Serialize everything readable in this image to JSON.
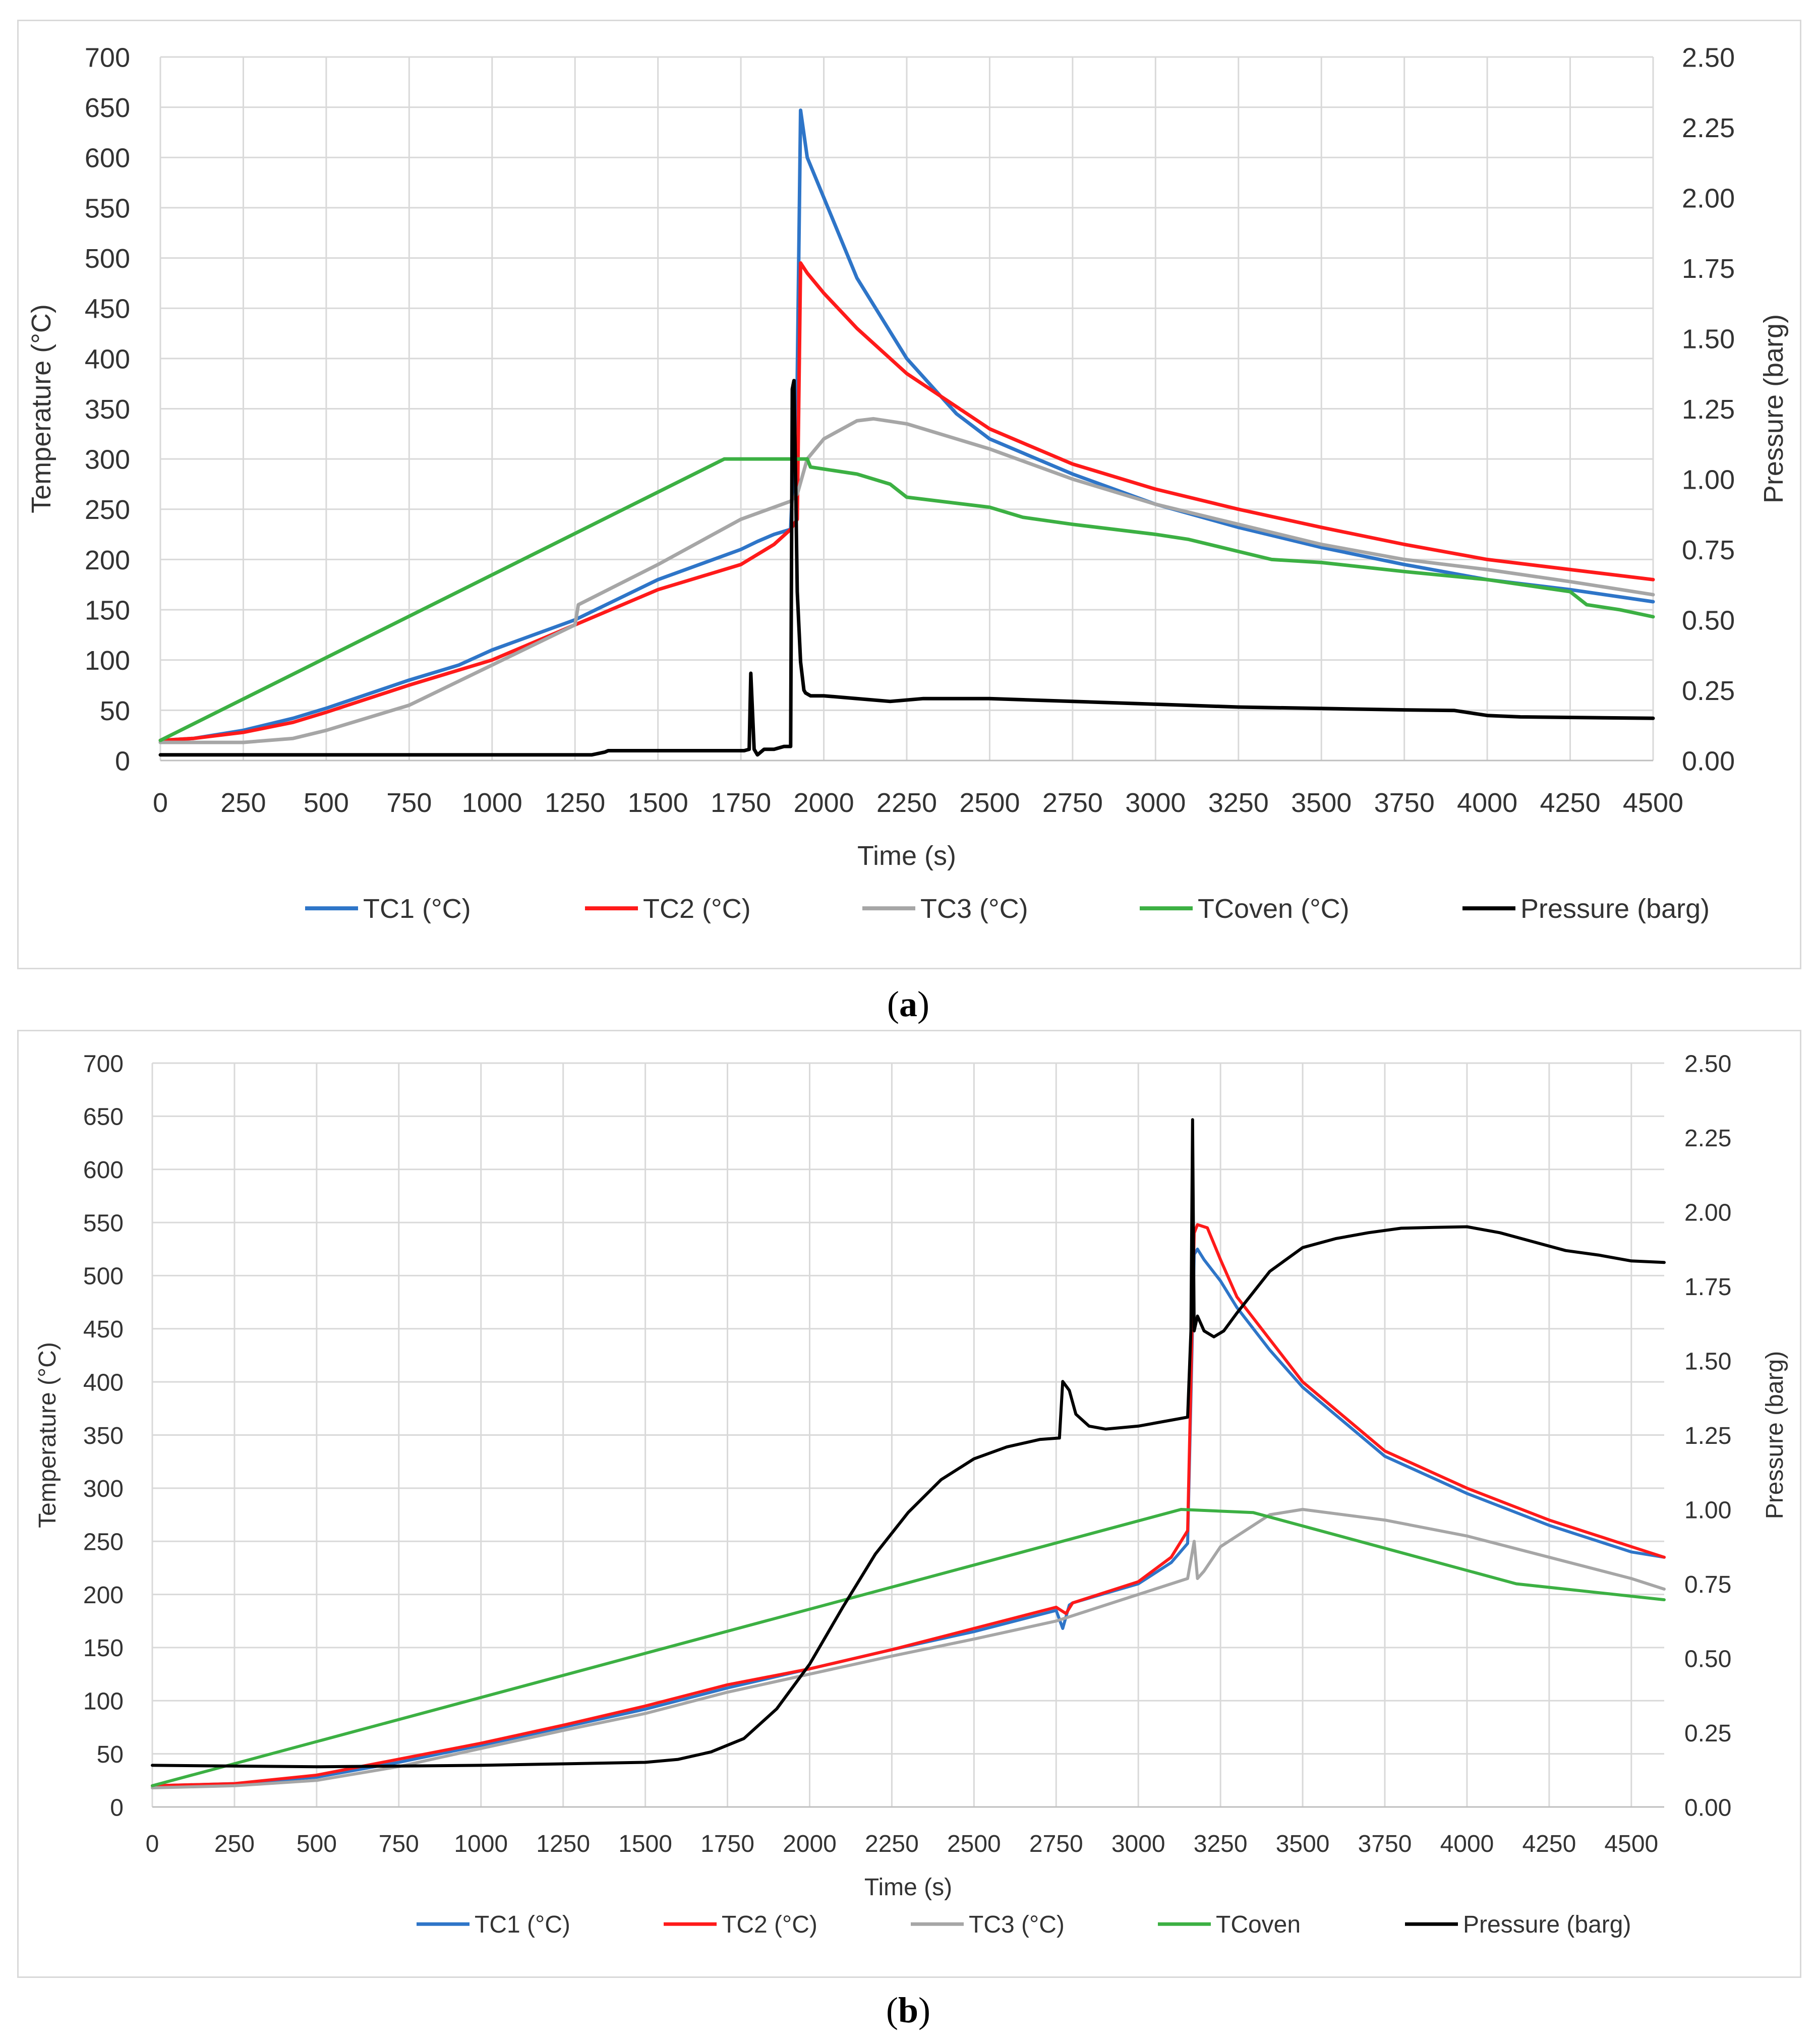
{
  "figure": {
    "captions": [
      "(a)",
      "(b)"
    ],
    "caption_letters": [
      "a",
      "b"
    ]
  },
  "colors": {
    "TC1": "#2e75c8",
    "TC2": "#ff1a1a",
    "TC3": "#a6a6a6",
    "TCoven": "#3cb043",
    "Pressure": "#000000",
    "grid": "#d9d9d9"
  },
  "chart_data": [
    {
      "id": "a",
      "type": "line",
      "title": "",
      "xlabel": "Time (s)",
      "ylabel": "Temperature (°C)",
      "y2label": "Pressure (barg)",
      "xlim": [
        0,
        4500
      ],
      "ylim": [
        0,
        700
      ],
      "y2lim": [
        0,
        2.5
      ],
      "x_ticks": [
        0,
        250,
        500,
        750,
        1000,
        1250,
        1500,
        1750,
        2000,
        2250,
        2500,
        2750,
        3000,
        3250,
        3500,
        3750,
        4000,
        4250,
        4500
      ],
      "y_ticks": [
        0,
        50,
        100,
        150,
        200,
        250,
        300,
        350,
        400,
        450,
        500,
        550,
        600,
        650,
        700
      ],
      "y2_ticks": [
        "0.00",
        "0.25",
        "0.50",
        "0.75",
        "1.00",
        "1.25",
        "1.50",
        "1.75",
        "2.00",
        "2.25",
        "2.50"
      ],
      "grid": true,
      "legend": "bottom",
      "series": [
        {
          "name": "TC1 (°C)",
          "key": "TC1",
          "axis": "y",
          "x": [
            0,
            100,
            250,
            400,
            500,
            750,
            900,
            1000,
            1250,
            1500,
            1750,
            1800,
            1850,
            1900,
            1920,
            1930,
            1950,
            2000,
            2100,
            2250,
            2400,
            2500,
            2750,
            3000,
            3250,
            3500,
            3750,
            4000,
            4250,
            4500
          ],
          "y": [
            20,
            22,
            30,
            42,
            52,
            80,
            95,
            110,
            140,
            180,
            210,
            218,
            225,
            230,
            380,
            647,
            600,
            560,
            480,
            400,
            345,
            320,
            285,
            255,
            232,
            212,
            195,
            180,
            170,
            158
          ]
        },
        {
          "name": "TC2 (°C)",
          "key": "TC2",
          "axis": "y",
          "x": [
            0,
            100,
            250,
            400,
            500,
            750,
            1000,
            1250,
            1500,
            1750,
            1850,
            1900,
            1920,
            1930,
            1950,
            2000,
            2100,
            2250,
            2500,
            2750,
            3000,
            3250,
            3500,
            3750,
            4000,
            4250,
            4500
          ],
          "y": [
            20,
            22,
            28,
            38,
            48,
            75,
            100,
            135,
            170,
            195,
            215,
            230,
            240,
            495,
            485,
            465,
            430,
            385,
            330,
            295,
            270,
            250,
            232,
            215,
            200,
            190,
            180
          ]
        },
        {
          "name": "TC3 (°C)",
          "key": "TC3",
          "axis": "y",
          "x": [
            0,
            250,
            400,
            500,
            750,
            1000,
            1250,
            1260,
            1500,
            1750,
            1900,
            1920,
            1950,
            2000,
            2100,
            2150,
            2250,
            2500,
            2750,
            3000,
            3250,
            3500,
            3750,
            4000,
            4250,
            4500
          ],
          "y": [
            18,
            18,
            22,
            30,
            55,
            95,
            135,
            155,
            195,
            240,
            258,
            265,
            300,
            320,
            338,
            340,
            335,
            310,
            280,
            255,
            235,
            215,
            200,
            190,
            178,
            165
          ]
        },
        {
          "name": "TCoven (°C)",
          "key": "TCoven",
          "axis": "y",
          "x": [
            0,
            1700,
            1950,
            1960,
            2000,
            2100,
            2200,
            2250,
            2500,
            2600,
            2750,
            3000,
            3100,
            3250,
            3350,
            3500,
            3750,
            4000,
            4250,
            4300,
            4400,
            4500
          ],
          "y": [
            20,
            300,
            300,
            292,
            290,
            285,
            275,
            262,
            252,
            242,
            235,
            225,
            220,
            208,
            200,
            197,
            188,
            180,
            168,
            155,
            150,
            143
          ]
        },
        {
          "name": "Pressure (barg)",
          "key": "Pressure",
          "axis": "y2",
          "x": [
            0,
            200,
            1250,
            1300,
            1340,
            1350,
            1760,
            1775,
            1780,
            1790,
            1800,
            1820,
            1850,
            1880,
            1900,
            1905,
            1910,
            1915,
            1920,
            1930,
            1940,
            1945,
            1960,
            2000,
            2100,
            2200,
            2300,
            2500,
            2750,
            3000,
            3250,
            3500,
            3750,
            3900,
            4000,
            4100,
            4500
          ],
          "y": [
            0.02,
            0.02,
            0.02,
            0.02,
            0.03,
            0.035,
            0.035,
            0.04,
            0.31,
            0.04,
            0.02,
            0.04,
            0.04,
            0.05,
            0.05,
            1.32,
            1.35,
            1.0,
            0.6,
            0.35,
            0.25,
            0.24,
            0.23,
            0.23,
            0.22,
            0.21,
            0.22,
            0.22,
            0.21,
            0.2,
            0.19,
            0.185,
            0.18,
            0.178,
            0.16,
            0.155,
            0.15
          ]
        }
      ]
    },
    {
      "id": "b",
      "type": "line",
      "title": "",
      "xlabel": "Time (s)",
      "ylabel": "Temperature (°C)",
      "y2label": "Pressure (barg)",
      "xlim": [
        0,
        4600
      ],
      "ylim": [
        0,
        700
      ],
      "y2lim": [
        0,
        2.5
      ],
      "x_ticks": [
        0,
        250,
        500,
        750,
        1000,
        1250,
        1500,
        1750,
        2000,
        2250,
        2500,
        2750,
        3000,
        3250,
        3500,
        3750,
        4000,
        4250,
        4500
      ],
      "y_ticks": [
        0,
        50,
        100,
        150,
        200,
        250,
        300,
        350,
        400,
        450,
        500,
        550,
        600,
        650,
        700
      ],
      "y2_ticks": [
        "0.00",
        "0.25",
        "0.50",
        "0.75",
        "1.00",
        "1.25",
        "1.50",
        "1.75",
        "2.00",
        "2.25",
        "2.50"
      ],
      "grid": true,
      "legend": "bottom",
      "series": [
        {
          "name": "TC1 (°C)",
          "key": "TC1",
          "axis": "y",
          "x": [
            0,
            250,
            500,
            750,
            1000,
            1250,
            1500,
            1750,
            2000,
            2250,
            2500,
            2750,
            2770,
            2790,
            2800,
            3000,
            3100,
            3150,
            3170,
            3180,
            3200,
            3250,
            3300,
            3400,
            3500,
            3750,
            4000,
            4250,
            4500,
            4600
          ],
          "y": [
            20,
            22,
            28,
            42,
            58,
            75,
            92,
            112,
            130,
            148,
            165,
            185,
            168,
            190,
            192,
            210,
            230,
            248,
            520,
            525,
            515,
            495,
            470,
            430,
            395,
            330,
            295,
            265,
            240,
            235
          ]
        },
        {
          "name": "TC2 (°C)",
          "key": "TC2",
          "axis": "y",
          "x": [
            0,
            250,
            500,
            750,
            1000,
            1250,
            1500,
            1750,
            2000,
            2250,
            2500,
            2750,
            2780,
            2800,
            3000,
            3100,
            3150,
            3170,
            3180,
            3210,
            3250,
            3300,
            3400,
            3500,
            3750,
            4000,
            4250,
            4500,
            4600
          ],
          "y": [
            20,
            22,
            30,
            45,
            60,
            77,
            95,
            115,
            130,
            148,
            168,
            188,
            182,
            192,
            212,
            235,
            260,
            540,
            548,
            545,
            515,
            480,
            440,
            400,
            335,
            300,
            270,
            245,
            235
          ]
        },
        {
          "name": "TC3 (°C)",
          "key": "TC3",
          "axis": "y",
          "x": [
            0,
            250,
            500,
            750,
            1000,
            1250,
            1500,
            1750,
            2000,
            2250,
            2500,
            2750,
            3000,
            3150,
            3170,
            3180,
            3200,
            3250,
            3400,
            3500,
            3750,
            4000,
            4250,
            4500,
            4600
          ],
          "y": [
            18,
            20,
            25,
            38,
            55,
            72,
            88,
            108,
            125,
            142,
            158,
            175,
            200,
            215,
            250,
            215,
            222,
            245,
            275,
            280,
            270,
            255,
            235,
            215,
            205
          ]
        },
        {
          "name": "TCoven",
          "key": "TCoven",
          "axis": "y",
          "x": [
            0,
            3130,
            3350,
            4150,
            4600
          ],
          "y": [
            20,
            280,
            277,
            210,
            195
          ]
        },
        {
          "name": "Pressure (barg)",
          "key": "Pressure",
          "axis": "y2",
          "x": [
            0,
            500,
            1000,
            1500,
            1600,
            1700,
            1800,
            1900,
            2000,
            2100,
            2200,
            2300,
            2400,
            2500,
            2600,
            2700,
            2760,
            2770,
            2790,
            2810,
            2850,
            2900,
            3000,
            3100,
            3150,
            3160,
            3165,
            3170,
            3180,
            3200,
            3230,
            3260,
            3300,
            3400,
            3500,
            3600,
            3700,
            3800,
            3900,
            4000,
            4100,
            4200,
            4300,
            4400,
            4500,
            4600
          ],
          "y": [
            0.14,
            0.135,
            0.14,
            0.15,
            0.16,
            0.185,
            0.23,
            0.33,
            0.48,
            0.67,
            0.85,
            0.99,
            1.1,
            1.17,
            1.21,
            1.235,
            1.24,
            1.43,
            1.4,
            1.32,
            1.28,
            1.27,
            1.28,
            1.3,
            1.31,
            1.6,
            2.31,
            1.6,
            1.65,
            1.6,
            1.58,
            1.6,
            1.66,
            1.8,
            1.88,
            1.91,
            1.93,
            1.945,
            1.948,
            1.95,
            1.93,
            1.9,
            1.87,
            1.855,
            1.835,
            1.83
          ]
        }
      ]
    }
  ]
}
